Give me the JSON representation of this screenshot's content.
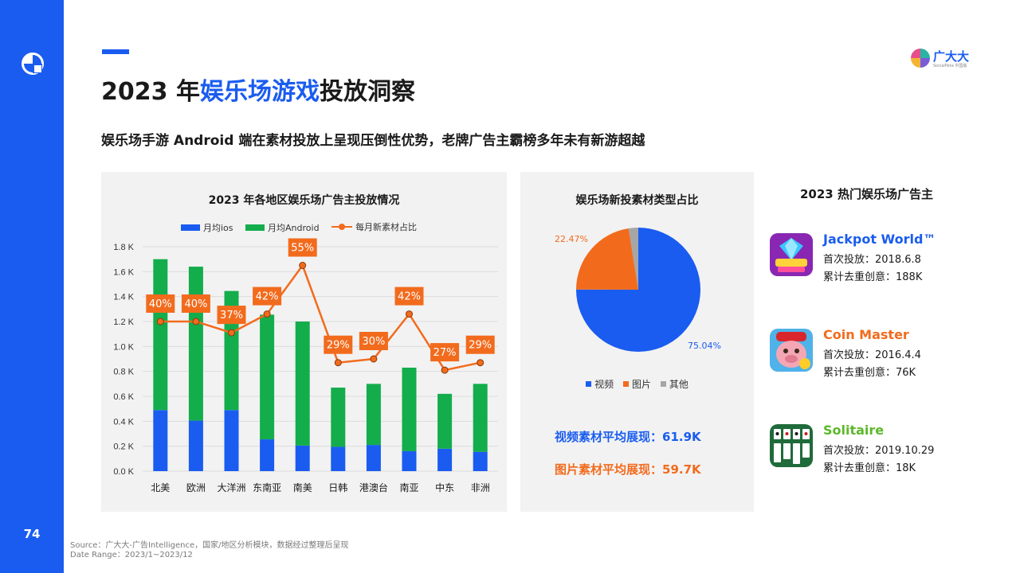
{
  "page": {
    "number": "74",
    "title_prefix": "2023 年",
    "title_highlight": "娱乐场游戏",
    "title_suffix": "投放洞察",
    "subtitle": "娱乐场手游 Android 端在素材投放上呈现压倒性优势，老牌广告主霸榜多年未有新游超越",
    "brand": "广大大",
    "brand_sub": "SocialPeta 中国版",
    "source_line1": "Source：广大大-广告Intelligence，国家/地区分析模块，数据经过整理后呈现",
    "source_line2": "Date Range：2023/1~2023/12"
  },
  "colors": {
    "accent": "#1a5cf0",
    "ios": "#1a5cf0",
    "android": "#13ad4c",
    "ratio": "#f26b1d",
    "other": "#a6a6a6",
    "panel": "#f2f2f2"
  },
  "chart_data": [
    {
      "type": "bar",
      "title": "2023 年各地区娱乐场广告主投放情况",
      "stacked": true,
      "categories": [
        "北美",
        "欧洲",
        "大洋洲",
        "东南亚",
        "南美",
        "日韩",
        "港澳台",
        "南亚",
        "中东",
        "非洲"
      ],
      "series": [
        {
          "name": "月均ios",
          "type": "bar",
          "values": [
            490,
            405,
            490,
            255,
            205,
            195,
            210,
            160,
            180,
            155
          ]
        },
        {
          "name": "月均Android",
          "type": "bar",
          "values": [
            1210,
            1235,
            955,
            1000,
            995,
            475,
            490,
            670,
            440,
            545
          ]
        },
        {
          "name": "每月新素材占比",
          "type": "line",
          "axis": "secondary",
          "values": [
            40,
            40,
            37,
            42,
            55,
            29,
            30,
            42,
            27,
            29
          ],
          "labels": [
            "40%",
            "40%",
            "37%",
            "42%",
            "55%",
            "29%",
            "30%",
            "42%",
            "27%",
            "29%"
          ]
        }
      ],
      "ylim": [
        0,
        1800
      ],
      "yticks": [
        "0.0 K",
        "0.2 K",
        "0.4 K",
        "0.6 K",
        "0.8 K",
        "1.0 K",
        "1.2 K",
        "1.4 K",
        "1.6 K",
        "1.8 K"
      ],
      "legend": "top",
      "grid": true
    },
    {
      "type": "pie",
      "title": "娱乐场新投素材类型占比",
      "labels": [
        "视频",
        "图片",
        "其他"
      ],
      "values": [
        75.04,
        22.47,
        2.49
      ],
      "value_labels": [
        "75.04%",
        "22.47%",
        ""
      ],
      "legend": "bottom"
    }
  ],
  "stats": {
    "video": "视频素材平均展现：61.9K",
    "image": "图片素材平均展现：59.7K"
  },
  "advertisers": {
    "title": "2023 热门娱乐场广告主",
    "items": [
      {
        "name": "Jackpot World™",
        "color": "#1a5cf0",
        "first": "首次投放：2018.6.8",
        "total": "累计去重创意：188K",
        "icon": "jackpot-world-icon"
      },
      {
        "name": "Coin Master",
        "color": "#f26b1d",
        "first": "首次投放：2016.4.4",
        "total": "累计去重创意：76K",
        "icon": "coin-master-icon"
      },
      {
        "name": "Solitaire",
        "color": "#5cb82a",
        "first": "首次投放：2019.10.29",
        "total": "累计去重创意：18K",
        "icon": "solitaire-icon"
      }
    ]
  }
}
